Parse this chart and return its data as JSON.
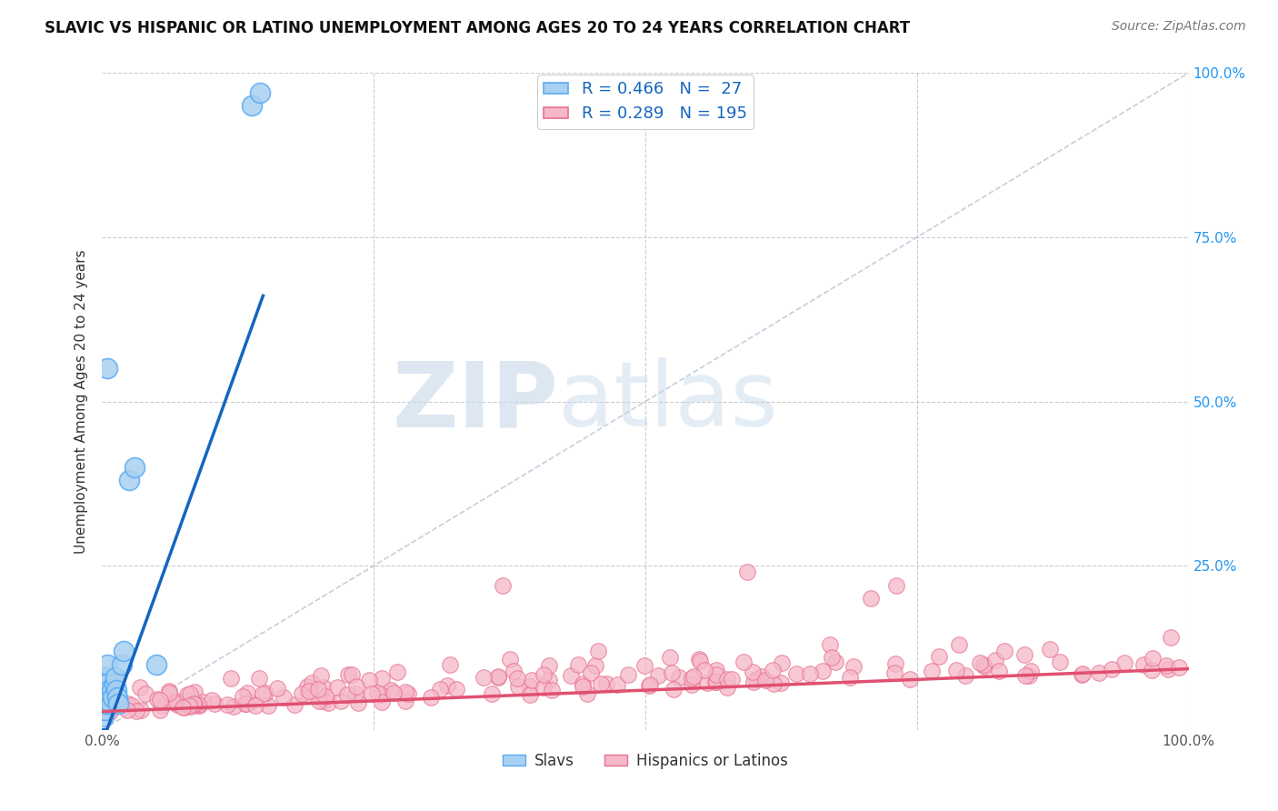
{
  "title": "SLAVIC VS HISPANIC OR LATINO UNEMPLOYMENT AMONG AGES 20 TO 24 YEARS CORRELATION CHART",
  "source": "Source: ZipAtlas.com",
  "ylabel": "Unemployment Among Ages 20 to 24 years",
  "xlim": [
    0,
    1
  ],
  "ylim": [
    0,
    1
  ],
  "xtick_positions": [
    0,
    0.25,
    0.5,
    0.75,
    1.0
  ],
  "xticklabels": [
    "0.0%",
    "",
    "",
    "",
    "100.0%"
  ],
  "ytick_positions": [
    0,
    0.25,
    0.5,
    0.75,
    1.0
  ],
  "yticklabels_right": [
    "",
    "25.0%",
    "50.0%",
    "75.0%",
    "100.0%"
  ],
  "slav_color": "#a8d0f0",
  "slav_edge_color": "#5aabf5",
  "hispanic_color": "#f5b8c8",
  "hispanic_edge_color": "#e87090",
  "slav_line_color": "#1565c0",
  "hispanic_line_color": "#e05070",
  "diag_color": "#aabccc",
  "R_slav": 0.466,
  "N_slav": 27,
  "R_hispanic": 0.289,
  "N_hispanic": 195,
  "legend_label_slav": "Slavs",
  "legend_label_hispanic": "Hispanics or Latinos",
  "watermark_zip": "ZIP",
  "watermark_atlas": "atlas",
  "background_color": "#ffffff",
  "grid_color": "#cccccc"
}
